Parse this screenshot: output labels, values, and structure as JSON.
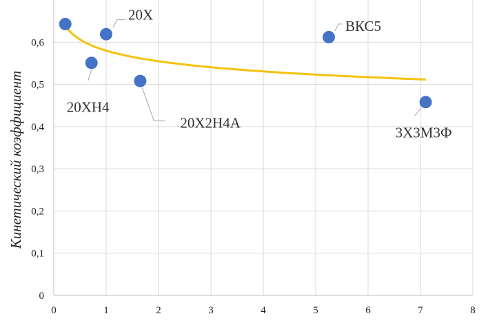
{
  "chart_data": {
    "type": "scatter",
    "ylabel": "Кинетический коэффициент",
    "xlim": [
      0,
      8
    ],
    "ylim": [
      0,
      0.7
    ],
    "x_ticks": [
      0,
      1,
      2,
      3,
      4,
      5,
      6,
      7,
      8
    ],
    "x_tick_labels": [
      "0",
      "1",
      "2",
      "3",
      "4",
      "5",
      "6",
      "7",
      "8"
    ],
    "y_ticks": [
      0,
      0.1,
      0.2,
      0.3,
      0.4,
      0.5,
      0.6
    ],
    "y_tick_labels": [
      "0",
      "0,1",
      "0,2",
      "0,3",
      "0,4",
      "0,5",
      "0,6"
    ],
    "grid": true,
    "points": [
      {
        "x": 0.22,
        "y": 0.643,
        "label": ""
      },
      {
        "x": 1.0,
        "y": 0.619,
        "label": "20Х"
      },
      {
        "x": 0.72,
        "y": 0.551,
        "label": "20ХН4"
      },
      {
        "x": 1.65,
        "y": 0.508,
        "label": "20Х2Н4А"
      },
      {
        "x": 5.25,
        "y": 0.612,
        "label": "ВКС5"
      },
      {
        "x": 7.1,
        "y": 0.458,
        "label": "3Х3М3Ф"
      }
    ],
    "trendline": {
      "type": "power",
      "a": 0.58,
      "b": -0.064,
      "x_from": 0.22,
      "x_to": 7.1
    },
    "colors": {
      "marker": "#4472c4",
      "trend": "#f4c20d"
    }
  }
}
